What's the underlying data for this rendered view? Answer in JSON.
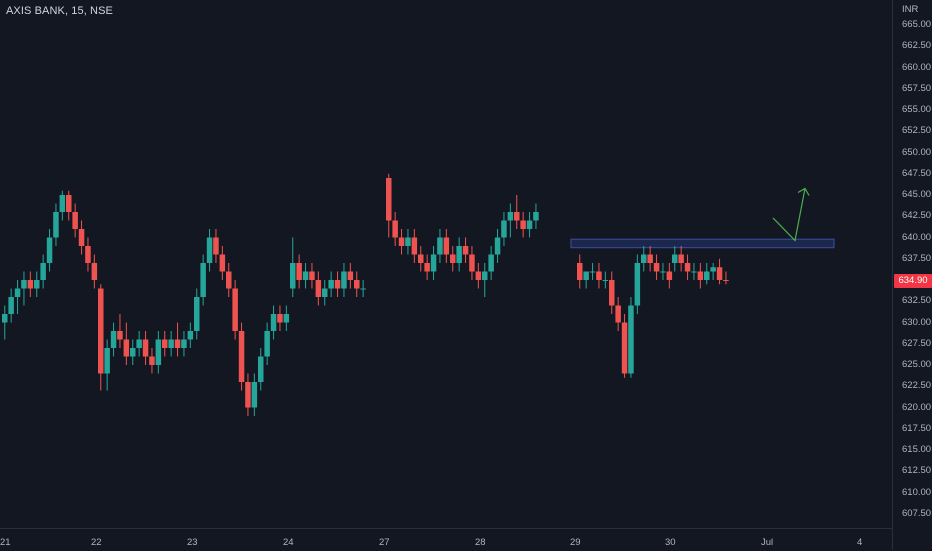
{
  "header": {
    "title": "AXIS BANK, 15, NSE"
  },
  "price_axis": {
    "currency": "INR",
    "ticks": [
      "665.00",
      "662.50",
      "660.00",
      "657.50",
      "655.00",
      "652.50",
      "650.00",
      "647.50",
      "645.00",
      "642.50",
      "640.00",
      "637.50",
      "635.00",
      "632.50",
      "630.00",
      "627.50",
      "625.00",
      "622.50",
      "620.00",
      "617.50",
      "615.00",
      "612.50",
      "610.00",
      "607.50"
    ],
    "last_price": "634.90"
  },
  "time_axis": {
    "labels": [
      "21",
      "22",
      "23",
      "24",
      "27",
      "28",
      "29",
      "30",
      "Jul",
      "4"
    ]
  },
  "colors": {
    "background": "#131722",
    "up": "#26a69a",
    "down": "#ef5350",
    "zone_fill": "#1e2a55",
    "zone_border": "#3d4f9e",
    "arrow": "#4caf50",
    "last_price_bg": "#f23645"
  },
  "chart_data": {
    "type": "candlestick",
    "symbol": "AXIS BANK",
    "interval": "15",
    "exchange": "NSE",
    "currency": "INR",
    "ylim": [
      606.0,
      667.5
    ],
    "sessions": [
      {
        "label": "21",
        "ohlc": [
          [
            630,
            632,
            628,
            631
          ],
          [
            631,
            634,
            630,
            633
          ],
          [
            633,
            635,
            631,
            634
          ],
          [
            634,
            636,
            632,
            635
          ],
          [
            635,
            636,
            633,
            634
          ],
          [
            634,
            636,
            633,
            635
          ],
          [
            635,
            638,
            634,
            637
          ],
          [
            637,
            641,
            636,
            640
          ],
          [
            640,
            644,
            639,
            643
          ],
          [
            643,
            645.5,
            642,
            645
          ],
          [
            645,
            645.5,
            642,
            643
          ],
          [
            643,
            644,
            640,
            641
          ],
          [
            641,
            642,
            638,
            639
          ],
          [
            639,
            640,
            636,
            637
          ],
          [
            637,
            638,
            634,
            635
          ]
        ]
      },
      {
        "label": "22",
        "ohlc": [
          [
            634,
            634.5,
            622,
            624
          ],
          [
            624,
            628,
            622,
            627
          ],
          [
            627,
            630,
            626,
            629
          ],
          [
            629,
            631,
            627,
            628
          ],
          [
            628,
            630,
            625,
            626
          ],
          [
            626,
            628,
            625,
            627
          ],
          [
            627,
            629,
            626,
            628
          ],
          [
            628,
            629,
            625,
            626
          ],
          [
            626,
            627,
            624,
            625
          ],
          [
            625,
            629,
            624,
            628
          ],
          [
            628,
            629,
            626,
            627
          ],
          [
            627,
            629,
            626,
            628
          ],
          [
            628,
            630,
            626,
            627
          ],
          [
            627,
            629,
            626,
            628
          ],
          [
            628,
            630,
            627,
            629
          ]
        ]
      },
      {
        "label": "23",
        "ohlc": [
          [
            629,
            634,
            628,
            633
          ],
          [
            633,
            638,
            632,
            637
          ],
          [
            637,
            641,
            636,
            640
          ],
          [
            640,
            641,
            637,
            638
          ],
          [
            638,
            639,
            635,
            636
          ],
          [
            636,
            637,
            633,
            634
          ],
          [
            634,
            635,
            628,
            629
          ],
          [
            629,
            630,
            622,
            623
          ],
          [
            623,
            624,
            619,
            620
          ],
          [
            620,
            624,
            619,
            623
          ],
          [
            623,
            627,
            622,
            626
          ],
          [
            626,
            630,
            625,
            629
          ],
          [
            629,
            632,
            628,
            631
          ],
          [
            631,
            632,
            629,
            630
          ],
          [
            630,
            632,
            629,
            631
          ]
        ]
      },
      {
        "label": "24",
        "ohlc": [
          [
            634,
            640,
            633,
            637
          ],
          [
            637,
            638,
            634,
            635
          ],
          [
            635,
            637,
            634,
            636
          ],
          [
            636,
            637,
            634,
            635
          ],
          [
            635,
            636,
            632,
            633
          ],
          [
            633,
            635,
            632,
            634
          ],
          [
            634,
            636,
            633,
            635
          ],
          [
            635,
            636,
            633,
            634
          ],
          [
            634,
            637,
            633,
            636
          ],
          [
            636,
            637,
            634,
            635
          ],
          [
            635,
            636,
            633,
            634
          ],
          [
            634,
            635,
            633,
            634
          ]
        ]
      },
      {
        "label": "27",
        "ohlc": [
          [
            647,
            647.5,
            640,
            642
          ],
          [
            642,
            643,
            639,
            640
          ],
          [
            640,
            641,
            638,
            639
          ],
          [
            639,
            641,
            638,
            640
          ],
          [
            640,
            641,
            637,
            638
          ],
          [
            638,
            639,
            636,
            637
          ],
          [
            637,
            638,
            635,
            636
          ],
          [
            636,
            639,
            635,
            638
          ],
          [
            638,
            641,
            637,
            640
          ],
          [
            640,
            641,
            637,
            638
          ],
          [
            638,
            639,
            636,
            637
          ],
          [
            637,
            640,
            636,
            639
          ],
          [
            639,
            640,
            637,
            638
          ],
          [
            638,
            639,
            635,
            636
          ],
          [
            636,
            637,
            634,
            635
          ]
        ]
      },
      {
        "label": "28",
        "ohlc": [
          [
            635,
            637,
            633,
            636
          ],
          [
            636,
            639,
            635,
            638
          ],
          [
            638,
            641,
            637,
            640
          ],
          [
            640,
            643,
            639,
            642
          ],
          [
            642,
            644,
            640,
            643
          ],
          [
            643,
            645,
            641,
            642
          ],
          [
            642,
            643,
            640,
            641
          ],
          [
            641,
            643,
            640,
            642
          ],
          [
            642,
            644,
            641,
            643
          ]
        ]
      },
      {
        "label": "29",
        "ohlc": [
          [
            637,
            638,
            634,
            635
          ],
          [
            635,
            636,
            634,
            636
          ],
          [
            636,
            637,
            635,
            636
          ],
          [
            636,
            637,
            634,
            635
          ],
          [
            635,
            636,
            634,
            635
          ],
          [
            635,
            636,
            631,
            632
          ],
          [
            632,
            633,
            629,
            630
          ],
          [
            630,
            631,
            623.5,
            624
          ],
          [
            624,
            633,
            623.5,
            632
          ],
          [
            632,
            638,
            631,
            637
          ],
          [
            637,
            639,
            636,
            638
          ],
          [
            638,
            639,
            636,
            637
          ],
          [
            637,
            638,
            635,
            636
          ],
          [
            636,
            637,
            635,
            636
          ],
          [
            636,
            637,
            634,
            635
          ]
        ]
      },
      {
        "label": "30",
        "ohlc": [
          [
            637,
            639,
            636,
            638
          ],
          [
            638,
            639,
            636,
            637
          ],
          [
            637,
            638,
            635,
            636
          ],
          [
            636,
            637,
            635,
            636
          ],
          [
            636,
            637,
            634,
            635
          ],
          [
            635,
            637,
            634.5,
            636
          ],
          [
            636,
            637,
            635,
            636.5
          ],
          [
            636.5,
            637.5,
            634.5,
            635
          ],
          [
            635,
            636,
            634.5,
            634.9
          ]
        ]
      }
    ],
    "resistance_zone": [
      638.8,
      639.8
    ],
    "projection_path": [
      [
        640.0
      ],
      [
        642.3
      ],
      [
        639.8
      ],
      [
        646.0
      ]
    ],
    "last_value": 634.9
  }
}
